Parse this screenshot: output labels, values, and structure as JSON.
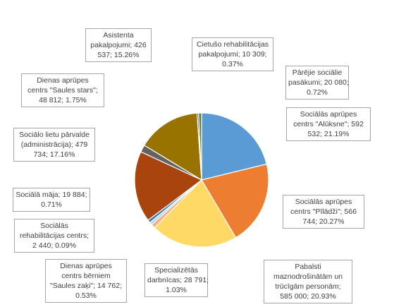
{
  "chart_data": {
    "type": "pie",
    "start_angle_deg": 0,
    "direction": "clockwise",
    "slices": [
      {
        "category": "Sociālās aprūpes centrs \"Alūksne\"",
        "value": 592532,
        "percent": 21.19,
        "color": "#5B9BD5",
        "label_lines": [
          "Sociālās aprūpes",
          "centrs \"Alūksne\"; 592",
          "532; 21.19%"
        ]
      },
      {
        "category": "Sociālās aprūpes centrs \"Pīlādži\"",
        "value": 566744,
        "percent": 20.27,
        "color": "#ED7D31",
        "label_lines": [
          "Sociālās aprūpes",
          "centrs \"Pīlādži\"; 566",
          "744; 20.27%"
        ]
      },
      {
        "category": "Pabalsti maznodrošinātām un trūcīgām personām",
        "value": 585000,
        "percent": 20.93,
        "color": "#FFD966",
        "label_lines": [
          "Pabalsti",
          "maznodrošinātām un",
          "trūcīgām personām;",
          "585 000; 20.93%"
        ]
      },
      {
        "category": "Specializētās darbnīcas",
        "value": 28791,
        "percent": 1.03,
        "color": "#F4B183",
        "label_lines": [
          "Specializētās",
          "darbnīcas; 28 791;",
          "1.03%"
        ]
      },
      {
        "category": "Dienas aprūpes centrs bērniem \"Saules zaķi\"",
        "value": 14762,
        "percent": 0.53,
        "color": "#9DC3E6",
        "label_lines": [
          "Dienas aprūpes",
          "centrs bērniem",
          "\"Saules zaķi\"; 14 762;",
          "0.53%"
        ]
      },
      {
        "category": "Sociālās rehabilitācijas centrs",
        "value": 2440,
        "percent": 0.09,
        "color": "#A9D18E",
        "label_lines": [
          "Sociālās",
          "rehabilitācijas centrs;",
          "2 440; 0.09%"
        ]
      },
      {
        "category": "Sociālā māja",
        "value": 19884,
        "percent": 0.71,
        "color": "#2E75B6",
        "label_lines": [
          "Sociālā māja; 19 884;",
          "0.71%"
        ]
      },
      {
        "category": "Sociālo lietu pārvalde (administrācija)",
        "value": 479734,
        "percent": 17.16,
        "color": "#A9440F",
        "label_lines": [
          "Sociālo lietu pārvalde",
          "(administrācija); 479",
          "734; 17.16%"
        ]
      },
      {
        "category": "Dienas aprūpes centrs \"Saules stars\"",
        "value": 48812,
        "percent": 1.75,
        "color": "#636363",
        "label_lines": [
          "Dienas aprūpes",
          "centrs \"Saules stars\";",
          "48 812; 1.75%"
        ]
      },
      {
        "category": "Asistenta pakalpojumi",
        "value": 426537,
        "percent": 15.26,
        "color": "#997300",
        "label_lines": [
          "Asistenta",
          "pakalpojumi; 426",
          "537; 15.26%"
        ]
      },
      {
        "category": "Cietušo rehabilitācijas pakalpojumi",
        "value": 10309,
        "percent": 0.37,
        "color": "#264478",
        "label_lines": [
          "Cietušo rehabilitācijas",
          "pakalpojumi; 10 309;",
          "0.37%"
        ]
      },
      {
        "category": "Pārējie sociālie pasākumi",
        "value": 20080,
        "percent": 0.72,
        "color": "#5B7F3A",
        "label_lines": [
          "Pārējie sociālie",
          "pasākumi; 20 080;",
          "0.72%"
        ]
      }
    ]
  }
}
